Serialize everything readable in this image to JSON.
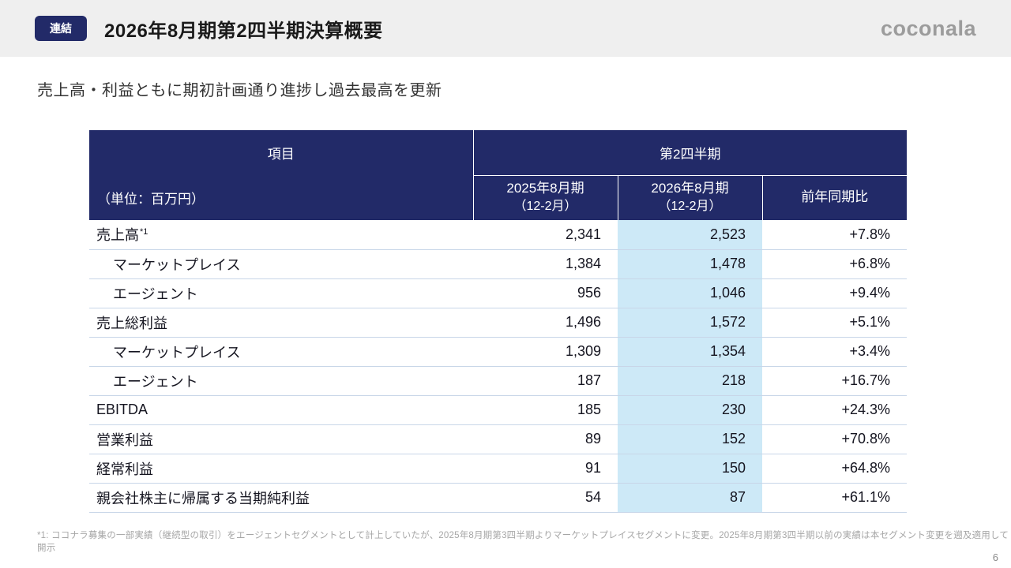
{
  "colors": {
    "navy": "#222a68",
    "highlight": "#cde9f7",
    "row_border": "#c8d6e8",
    "topbar": "#efefef",
    "muted_gray": "#a6a6a6"
  },
  "header": {
    "badge": "連結",
    "title": "2026年8月期第2四半期決算概要",
    "logo": "coconala"
  },
  "subtitle": "売上高・利益ともに期初計画通り進捗し過去最高を更新",
  "table": {
    "item_header": "項目",
    "unit_label": "（単位：百万円）",
    "group_header": "第2四半期",
    "columns": [
      {
        "label": "2025年8月期",
        "sublabel": "（12-2月）"
      },
      {
        "label": "2026年8月期",
        "sublabel": "（12-2月）"
      },
      {
        "label": "前年同期比",
        "sublabel": ""
      }
    ],
    "rows": [
      {
        "item": "売上高",
        "sup": "*1",
        "indent": false,
        "fy2025": "2,341",
        "fy2026": "2,523",
        "yoy": "+7.8%"
      },
      {
        "item": "マーケットプレイス",
        "sup": "",
        "indent": true,
        "fy2025": "1,384",
        "fy2026": "1,478",
        "yoy": "+6.8%"
      },
      {
        "item": "エージェント",
        "sup": "",
        "indent": true,
        "fy2025": "956",
        "fy2026": "1,046",
        "yoy": "+9.4%"
      },
      {
        "item": "売上総利益",
        "sup": "",
        "indent": false,
        "fy2025": "1,496",
        "fy2026": "1,572",
        "yoy": "+5.1%"
      },
      {
        "item": "マーケットプレイス",
        "sup": "",
        "indent": true,
        "fy2025": "1,309",
        "fy2026": "1,354",
        "yoy": "+3.4%"
      },
      {
        "item": "エージェント",
        "sup": "",
        "indent": true,
        "fy2025": "187",
        "fy2026": "218",
        "yoy": "+16.7%"
      },
      {
        "item": "EBITDA",
        "sup": "",
        "indent": false,
        "fy2025": "185",
        "fy2026": "230",
        "yoy": "+24.3%"
      },
      {
        "item": "営業利益",
        "sup": "",
        "indent": false,
        "fy2025": "89",
        "fy2026": "152",
        "yoy": "+70.8%"
      },
      {
        "item": "経常利益",
        "sup": "",
        "indent": false,
        "fy2025": "91",
        "fy2026": "150",
        "yoy": "+64.8%"
      },
      {
        "item": "親会社株主に帰属する当期純利益",
        "sup": "",
        "indent": false,
        "fy2025": "54",
        "fy2026": "87",
        "yoy": "+61.1%"
      }
    ]
  },
  "footnote": "*1: ココナラ募集の一部実績（継続型の取引）をエージェントセグメントとして計上していたが、2025年8月期第3四半期よりマーケットプレイスセグメントに変更。2025年8月期第3四半期以前の実績は本セグメント変更を遡及適用して開示",
  "page_number": "6"
}
